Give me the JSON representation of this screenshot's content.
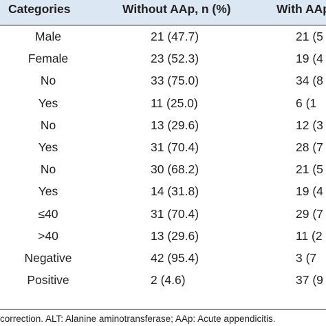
{
  "table": {
    "headers": {
      "categories": "Categories",
      "without": "Without AAp, n (%)",
      "with": "With AAp"
    },
    "rows": [
      {
        "category": "Male",
        "without": "21 (47.7)",
        "with": "21 (5"
      },
      {
        "category": "Female",
        "without": "23 (52.3)",
        "with": "19 (4"
      },
      {
        "category": "No",
        "without": "33 (75.0)",
        "with": "34 (8"
      },
      {
        "category": "Yes",
        "without": "11 (25.0)",
        "with": "6 (1"
      },
      {
        "category": "No",
        "without": "13 (29.6)",
        "with": "12 (3"
      },
      {
        "category": "Yes",
        "without": "31 (70.4)",
        "with": "28 (7"
      },
      {
        "category": "No",
        "without": "30 (68.2)",
        "with": "21 (5"
      },
      {
        "category": "Yes",
        "without": "14 (31.8)",
        "with": "19 (4"
      },
      {
        "category": "≤40",
        "without": "31 (70.4)",
        "with": "29 (7"
      },
      {
        "category": ">40",
        "without": "13 (29.6)",
        "with": "11 (2"
      },
      {
        "category": "Negative",
        "without": "42 (95.4)",
        "with": "3 (7"
      },
      {
        "category": "Positive",
        "without": "2 (4.6)",
        "with": "37 (9"
      }
    ]
  },
  "footnote": "correction. ALT: Alanine aminotransferase; AAp: Acute appendicitis.",
  "colors": {
    "header_background": "#dbe7f3",
    "text": "#231f20",
    "rule": "#231f20"
  }
}
